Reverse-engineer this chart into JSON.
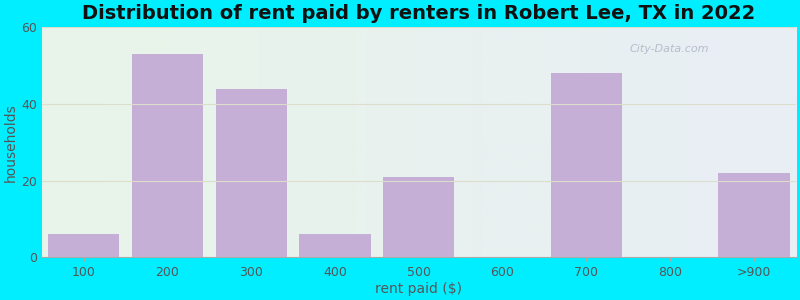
{
  "categories": [
    "100",
    "200",
    "300",
    "400",
    "500",
    "600",
    "700",
    "800",
    ">900"
  ],
  "values": [
    6,
    53,
    44,
    6,
    21,
    0,
    48,
    0,
    22
  ],
  "bar_color": "#c5afd6",
  "bar_edgecolor": "#c5afd6",
  "title": "Distribution of rent paid by renters in Robert Lee, TX in 2022",
  "xlabel": "rent paid ($)",
  "ylabel": "households",
  "ylim": [
    0,
    60
  ],
  "yticks": [
    0,
    20,
    40,
    60
  ],
  "bg_color_outer": "#00eeff",
  "bg_color_inner_left": "#e8f5e9",
  "bg_color_inner_right": "#e8eef5",
  "title_fontsize": 14,
  "axis_label_fontsize": 10,
  "tick_fontsize": 9,
  "bar_width": 0.85,
  "watermark_text": "City-Data.com"
}
